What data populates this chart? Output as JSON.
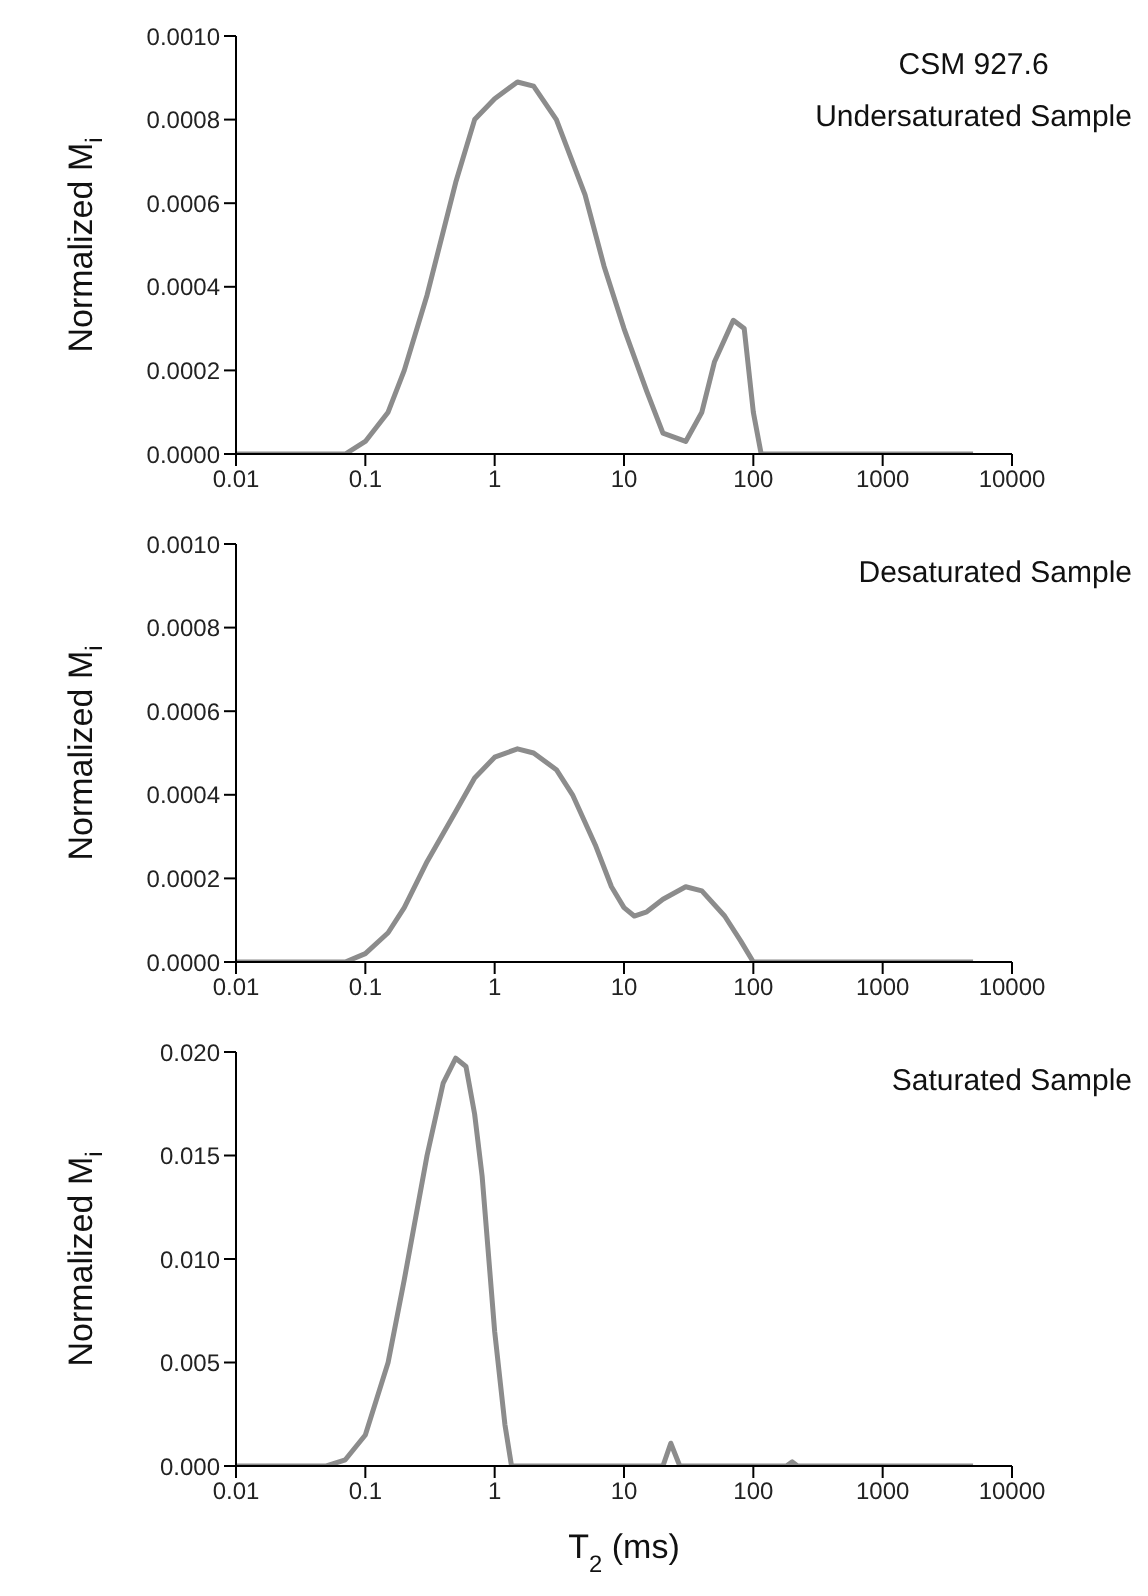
{
  "chart_data": [
    {
      "type": "line",
      "ylabel": "Normalized M$_{i}$",
      "annotations": [
        "CSM 927.6",
        "Undersaturated Sample"
      ],
      "xlim": [
        0.01,
        10000
      ],
      "xticks": [
        0.01,
        0.1,
        1,
        10,
        100,
        1000,
        10000
      ],
      "log": "x",
      "ylim": [
        0,
        0.001
      ],
      "yticks": [
        {
          "value": 0,
          "label": "0.0000"
        },
        {
          "value": 0.0002,
          "label": "0.0002"
        },
        {
          "value": 0.0004,
          "label": "0.0004"
        },
        {
          "value": 0.0006,
          "label": "0.0006"
        },
        {
          "value": 0.0008,
          "label": "0.0008"
        },
        {
          "value": 0.001,
          "label": "0.0010"
        }
      ],
      "grid": false,
      "legend": false,
      "marker": "none",
      "line_style": "solid",
      "series": [
        {
          "color": "#8c8c8c",
          "x": [
            0.01,
            0.05,
            0.07,
            0.1,
            0.15,
            0.2,
            0.3,
            0.5,
            0.7,
            1,
            1.5,
            2,
            3,
            5,
            7,
            10,
            15,
            20,
            30,
            40,
            50,
            70,
            85,
            100,
            115,
            200,
            5000
          ],
          "values": [
            0,
            0,
            0,
            3e-05,
            0.0001,
            0.0002,
            0.00038,
            0.00065,
            0.0008,
            0.00085,
            0.00089,
            0.00088,
            0.0008,
            0.00062,
            0.00045,
            0.0003,
            0.00015,
            5e-05,
            3e-05,
            0.0001,
            0.00022,
            0.00032,
            0.0003,
            0.0001,
            0,
            0,
            0
          ]
        }
      ]
    },
    {
      "type": "line",
      "ylabel": "Normalized M$_{i}$",
      "annotations": [
        "Desaturated Sample"
      ],
      "xlim": [
        0.01,
        10000
      ],
      "xticks": [
        0.01,
        0.1,
        1,
        10,
        100,
        1000,
        10000
      ],
      "log": "x",
      "ylim": [
        0,
        0.001
      ],
      "yticks": [
        {
          "value": 0,
          "label": "0.0000"
        },
        {
          "value": 0.0002,
          "label": "0.0002"
        },
        {
          "value": 0.0004,
          "label": "0.0004"
        },
        {
          "value": 0.0006,
          "label": "0.0006"
        },
        {
          "value": 0.0008,
          "label": "0.0008"
        },
        {
          "value": 0.001,
          "label": "0.0010"
        }
      ],
      "grid": false,
      "legend": false,
      "marker": "none",
      "line_style": "solid",
      "series": [
        {
          "color": "#8c8c8c",
          "x": [
            0.01,
            0.05,
            0.07,
            0.1,
            0.15,
            0.2,
            0.3,
            0.5,
            0.7,
            1,
            1.5,
            2,
            3,
            4,
            6,
            8,
            10,
            12,
            15,
            20,
            30,
            40,
            60,
            80,
            100,
            5000
          ],
          "values": [
            0,
            0,
            0,
            2e-05,
            7e-05,
            0.00013,
            0.00024,
            0.00036,
            0.00044,
            0.00049,
            0.00051,
            0.0005,
            0.00046,
            0.0004,
            0.00028,
            0.00018,
            0.00013,
            0.00011,
            0.00012,
            0.00015,
            0.00018,
            0.00017,
            0.00011,
            5e-05,
            0,
            0
          ]
        }
      ]
    },
    {
      "type": "line",
      "ylabel": "Normalized M$_{i}$",
      "xlabel": "T$_{2}$ (ms)",
      "annotations": [
        "Saturated Sample"
      ],
      "xlim": [
        0.01,
        10000
      ],
      "xticks": [
        0.01,
        0.1,
        1,
        10,
        100,
        1000,
        10000
      ],
      "log": "x",
      "ylim": [
        0,
        0.02
      ],
      "yticks": [
        {
          "value": 0,
          "label": "0.000"
        },
        {
          "value": 0.005,
          "label": "0.005"
        },
        {
          "value": 0.01,
          "label": "0.010"
        },
        {
          "value": 0.015,
          "label": "0.015"
        },
        {
          "value": 0.02,
          "label": "0.020"
        }
      ],
      "grid": false,
      "legend": false,
      "marker": "none",
      "line_style": "solid",
      "series": [
        {
          "color": "#8c8c8c",
          "x": [
            0.01,
            0.05,
            0.07,
            0.1,
            0.15,
            0.2,
            0.3,
            0.4,
            0.5,
            0.6,
            0.7,
            0.8,
            1,
            1.2,
            1.35,
            20,
            23,
            27,
            180,
            200,
            220,
            5000
          ],
          "values": [
            0,
            0,
            0.0003,
            0.0015,
            0.005,
            0.009,
            0.015,
            0.0185,
            0.0197,
            0.0193,
            0.017,
            0.014,
            0.0065,
            0.002,
            0,
            0,
            0.0011,
            0,
            0,
            0.0002,
            0,
            0
          ]
        }
      ]
    }
  ]
}
